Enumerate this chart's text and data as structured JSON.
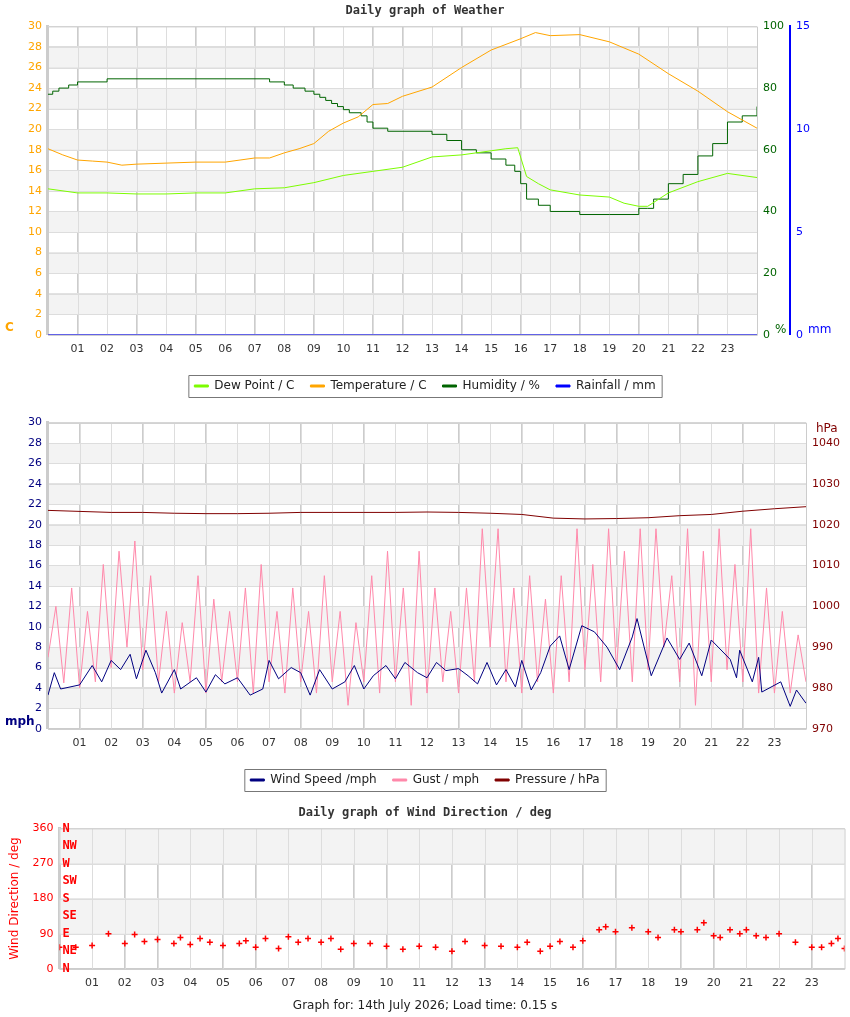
{
  "chart_data": [
    {
      "type": "line",
      "title": "Daily graph of Weather",
      "xlim": [
        0,
        24
      ],
      "xticks": [
        {
          "value": 1,
          "label": "01"
        },
        {
          "value": 2,
          "label": "02"
        },
        {
          "value": 3,
          "label": "03"
        },
        {
          "value": 4,
          "label": "04"
        },
        {
          "value": 5,
          "label": "05"
        },
        {
          "value": 6,
          "label": "06"
        },
        {
          "value": 7,
          "label": "07"
        },
        {
          "value": 8,
          "label": "08"
        },
        {
          "value": 9,
          "label": "09"
        },
        {
          "value": 10,
          "label": "10"
        },
        {
          "value": 11,
          "label": "11"
        },
        {
          "value": 12,
          "label": "12"
        },
        {
          "value": 13,
          "label": "13"
        },
        {
          "value": 14,
          "label": "14"
        },
        {
          "value": 15,
          "label": "15"
        },
        {
          "value": 16,
          "label": "16"
        },
        {
          "value": 17,
          "label": "17"
        },
        {
          "value": 18,
          "label": "18"
        },
        {
          "value": 19,
          "label": "19"
        },
        {
          "value": 20,
          "label": "20"
        },
        {
          "value": 21,
          "label": "21"
        },
        {
          "value": 22,
          "label": "22"
        },
        {
          "value": 23,
          "label": "23"
        }
      ],
      "ylim": [
        0,
        30
      ],
      "yticks": [
        0,
        2,
        4,
        6,
        8,
        10,
        12,
        14,
        16,
        18,
        20,
        22,
        24,
        26,
        28,
        30
      ],
      "ylabel": "C",
      "y2lim": [
        0,
        100
      ],
      "y2ticks": [
        0,
        20,
        40,
        60,
        80,
        100
      ],
      "y2label": "%",
      "y3lim": [
        0,
        15
      ],
      "y3ticks": [
        0,
        5,
        10,
        15
      ],
      "y3label": "mm",
      "grid": true,
      "legend": "bottom",
      "series": [
        {
          "name": "Dew Point / C",
          "color": "#7cfc00",
          "x": [
            0,
            1,
            2,
            3,
            4,
            5,
            6,
            7,
            8,
            9,
            10,
            11,
            12,
            13,
            14,
            15,
            15.5,
            15.9,
            16.2,
            16.6,
            17,
            18,
            19,
            19.5,
            20,
            20.3,
            21,
            22,
            23,
            24
          ],
          "values": [
            14.2,
            13.8,
            13.8,
            13.7,
            13.7,
            13.8,
            13.8,
            14.2,
            14.3,
            14.8,
            15.5,
            15.9,
            16.3,
            17.3,
            17.5,
            17.9,
            18.1,
            18.2,
            15.4,
            14.7,
            14.1,
            13.6,
            13.4,
            12.8,
            12.5,
            12.5,
            13.8,
            14.9,
            15.7,
            15.3
          ]
        },
        {
          "name": "Temperature / C",
          "color": "#ffa500",
          "x": [
            0,
            0.5,
            1,
            1.5,
            2,
            2.5,
            3,
            4,
            5,
            6,
            6.5,
            7,
            7.5,
            8,
            8.5,
            9,
            9.5,
            10,
            10.5,
            11,
            11.5,
            12,
            13,
            14,
            15,
            16,
            16.5,
            17,
            18,
            19,
            20,
            21,
            22,
            23,
            24
          ],
          "values": [
            18.1,
            17.5,
            17.0,
            16.9,
            16.8,
            16.5,
            16.6,
            16.7,
            16.8,
            16.8,
            17.0,
            17.2,
            17.2,
            17.7,
            18.1,
            18.6,
            19.8,
            20.6,
            21.2,
            22.4,
            22.5,
            23.2,
            24.1,
            26.0,
            27.7,
            28.8,
            29.4,
            29.1,
            29.2,
            28.5,
            27.3,
            25.4,
            23.7,
            21.7,
            20.1
          ]
        },
        {
          "name": "Humidity / %",
          "color": "#006400",
          "type": "step",
          "axis": "y2",
          "x": [
            0,
            0.16,
            0.37,
            0.7,
            1.0,
            2.0,
            7.5,
            8.0,
            8.3,
            8.7,
            9.0,
            9.2,
            9.4,
            9.6,
            9.8,
            10.0,
            10.2,
            10.6,
            10.8,
            11.0,
            11.5,
            13.0,
            13.5,
            14.0,
            14.5,
            15.0,
            15.5,
            15.8,
            16.0,
            16.2,
            16.6,
            17.0,
            18.0,
            19.0,
            20.0,
            20.3,
            20.5,
            21.0,
            21.5,
            22.0,
            22.5,
            23.0,
            23.5,
            24
          ],
          "values": [
            78,
            79,
            80,
            81,
            82,
            83,
            82,
            81,
            80,
            79,
            78,
            77,
            76,
            75,
            74,
            73,
            72,
            71,
            69,
            67,
            66,
            65,
            63,
            60,
            59,
            57,
            55,
            53,
            49,
            44,
            42,
            40,
            39,
            39,
            41,
            41,
            44,
            49,
            52,
            58,
            62,
            69,
            71,
            74
          ]
        },
        {
          "name": "Rainfall / mm",
          "color": "#0000ff",
          "axis": "y3",
          "x": [
            0,
            24
          ],
          "values": [
            0,
            0
          ]
        }
      ]
    },
    {
      "type": "line",
      "xlim": [
        0,
        24
      ],
      "xticks": [
        {
          "value": 1,
          "label": "01"
        },
        {
          "value": 2,
          "label": "02"
        },
        {
          "value": 3,
          "label": "03"
        },
        {
          "value": 4,
          "label": "04"
        },
        {
          "value": 5,
          "label": "05"
        },
        {
          "value": 6,
          "label": "06"
        },
        {
          "value": 7,
          "label": "07"
        },
        {
          "value": 8,
          "label": "08"
        },
        {
          "value": 9,
          "label": "09"
        },
        {
          "value": 10,
          "label": "10"
        },
        {
          "value": 11,
          "label": "11"
        },
        {
          "value": 12,
          "label": "12"
        },
        {
          "value": 13,
          "label": "13"
        },
        {
          "value": 14,
          "label": "14"
        },
        {
          "value": 15,
          "label": "15"
        },
        {
          "value": 16,
          "label": "16"
        },
        {
          "value": 17,
          "label": "17"
        },
        {
          "value": 18,
          "label": "18"
        },
        {
          "value": 19,
          "label": "19"
        },
        {
          "value": 20,
          "label": "20"
        },
        {
          "value": 21,
          "label": "21"
        },
        {
          "value": 22,
          "label": "22"
        },
        {
          "value": 23,
          "label": "23"
        }
      ],
      "ylim": [
        0,
        30
      ],
      "yticks": [
        0,
        2,
        4,
        6,
        8,
        10,
        12,
        14,
        16,
        18,
        20,
        22,
        24,
        26,
        28,
        30
      ],
      "ylabel": "mph",
      "y2lim": [
        970,
        1045
      ],
      "y2ticks": [
        970,
        980,
        990,
        1000,
        1010,
        1020,
        1030,
        1040
      ],
      "y2label": "hPa",
      "grid": true,
      "legend": "bottom",
      "series": [
        {
          "name": "Wind Speed /mph",
          "color": "#000080",
          "x": [
            0,
            0.2,
            0.4,
            1,
            1.4,
            1.7,
            2.0,
            2.3,
            2.6,
            2.8,
            3.1,
            3.4,
            3.6,
            4,
            4.2,
            4.7,
            5.0,
            5.3,
            5.6,
            6,
            6.4,
            6.8,
            7.0,
            7.3,
            7.7,
            8.0,
            8.3,
            8.6,
            9.0,
            9.4,
            9.7,
            10.0,
            10.3,
            10.7,
            11.0,
            11.3,
            11.7,
            12.0,
            12.3,
            12.6,
            13.0,
            13.3,
            13.6,
            13.9,
            14.2,
            14.5,
            14.8,
            15.0,
            15.3,
            15.6,
            15.9,
            16.2,
            16.5,
            16.9,
            17.3,
            17.7,
            18.1,
            18.5,
            18.65,
            19.1,
            19.6,
            20.0,
            20.3,
            20.7,
            21.0,
            21.6,
            21.8,
            21.9,
            22.3,
            22.5,
            22.6,
            23.2,
            23.5,
            23.7,
            24
          ],
          "values": [
            3.3,
            5.5,
            3.9,
            4.3,
            6.2,
            4.6,
            6.7,
            5.8,
            7.3,
            4.9,
            7.7,
            5.5,
            3.5,
            5.8,
            3.9,
            5.0,
            3.6,
            5.3,
            4.4,
            5.0,
            3.3,
            3.9,
            6.7,
            4.9,
            6.0,
            5.5,
            3.3,
            5.8,
            3.9,
            4.6,
            6.2,
            3.9,
            5.2,
            6.2,
            4.9,
            6.5,
            5.5,
            5.0,
            6.5,
            5.7,
            5.9,
            5.2,
            4.4,
            6.5,
            4.3,
            5.8,
            4.1,
            6.7,
            3.8,
            5.5,
            8.1,
            9.1,
            5.8,
            10.1,
            9.5,
            8.0,
            5.8,
            9.0,
            10.8,
            5.2,
            8.9,
            6.8,
            8.4,
            5.2,
            8.7,
            6.8,
            5.0,
            7.7,
            4.6,
            7.0,
            3.6,
            4.6,
            2.2,
            3.8,
            2.5
          ]
        },
        {
          "name": "Gust / mph",
          "color": "#ff88aa",
          "x": [
            0,
            0.25,
            0.5,
            0.75,
            1,
            1.25,
            1.5,
            1.75,
            2,
            2.25,
            2.5,
            2.75,
            3,
            3.25,
            3.5,
            3.75,
            4,
            4.25,
            4.5,
            4.75,
            5,
            5.25,
            5.5,
            5.75,
            6,
            6.25,
            6.5,
            6.75,
            7,
            7.25,
            7.5,
            7.75,
            8,
            8.25,
            8.5,
            8.75,
            9,
            9.25,
            9.5,
            9.75,
            10,
            10.25,
            10.5,
            10.75,
            11,
            11.25,
            11.5,
            11.75,
            12,
            12.25,
            12.5,
            12.75,
            13,
            13.25,
            13.5,
            13.75,
            14,
            14.25,
            14.5,
            14.75,
            15,
            15.25,
            15.5,
            15.75,
            16,
            16.25,
            16.5,
            16.75,
            17,
            17.25,
            17.5,
            17.75,
            18,
            18.25,
            18.5,
            18.75,
            19,
            19.25,
            19.5,
            19.75,
            20,
            20.25,
            20.5,
            20.75,
            21,
            21.25,
            21.5,
            21.75,
            22,
            22.25,
            22.5,
            22.75,
            23,
            23.25,
            23.5,
            23.75,
            24
          ],
          "values": [
            7,
            12,
            4.5,
            13.8,
            4,
            11.5,
            4.6,
            16.1,
            6,
            17.4,
            8,
            18.4,
            5.8,
            15,
            4.6,
            11.5,
            3.5,
            10.4,
            4.6,
            15,
            3.5,
            12.7,
            4.6,
            11.5,
            4.6,
            13.8,
            3.5,
            16.1,
            4.6,
            11.5,
            3.5,
            13.8,
            4.6,
            11.5,
            3.5,
            15,
            4.6,
            11.5,
            2.3,
            10.4,
            4.6,
            15,
            3.5,
            17.4,
            4.6,
            13.8,
            2.3,
            17.4,
            3.5,
            13.8,
            4.6,
            11.5,
            3.5,
            13.8,
            4.6,
            19.6,
            8,
            19.6,
            4.6,
            13.8,
            3.5,
            15,
            4.6,
            12.7,
            3.5,
            15,
            4.6,
            19.6,
            5.8,
            16.1,
            4.6,
            19.6,
            5.8,
            17.4,
            4.6,
            19.6,
            5.8,
            19.6,
            8,
            15,
            4.6,
            19.6,
            2.3,
            17.4,
            4.6,
            19.6,
            5.8,
            16.1,
            4.6,
            19.6,
            3.5,
            13.8,
            3.5,
            11.5,
            3.5,
            9.2,
            4.6
          ]
        },
        {
          "name": "Pressure / hPa",
          "color": "#800000",
          "axis": "y2",
          "x": [
            0,
            2,
            3,
            4,
            5,
            6,
            7,
            8,
            9,
            10,
            11,
            12,
            13,
            14,
            15,
            16,
            17,
            18,
            19,
            20,
            21,
            22,
            23,
            24
          ],
          "values": [
            1023.5,
            1023.0,
            1023.0,
            1022.8,
            1022.7,
            1022.7,
            1022.8,
            1023.0,
            1023.0,
            1023.0,
            1023.0,
            1023.1,
            1023.0,
            1022.8,
            1022.5,
            1021.6,
            1021.4,
            1021.5,
            1021.7,
            1022.2,
            1022.5,
            1023.3,
            1023.9,
            1024.4
          ]
        }
      ]
    },
    {
      "type": "scatter",
      "title": "Daily graph of Wind Direction / deg",
      "xlim": [
        0,
        24
      ],
      "xticks": [
        {
          "value": 1,
          "label": "01"
        },
        {
          "value": 2,
          "label": "02"
        },
        {
          "value": 3,
          "label": "03"
        },
        {
          "value": 4,
          "label": "04"
        },
        {
          "value": 5,
          "label": "05"
        },
        {
          "value": 6,
          "label": "06"
        },
        {
          "value": 7,
          "label": "07"
        },
        {
          "value": 8,
          "label": "08"
        },
        {
          "value": 9,
          "label": "09"
        },
        {
          "value": 10,
          "label": "10"
        },
        {
          "value": 11,
          "label": "11"
        },
        {
          "value": 12,
          "label": "12"
        },
        {
          "value": 13,
          "label": "13"
        },
        {
          "value": 14,
          "label": "14"
        },
        {
          "value": 15,
          "label": "15"
        },
        {
          "value": 16,
          "label": "16"
        },
        {
          "value": 17,
          "label": "17"
        },
        {
          "value": 18,
          "label": "18"
        },
        {
          "value": 19,
          "label": "19"
        },
        {
          "value": 20,
          "label": "20"
        },
        {
          "value": 21,
          "label": "21"
        },
        {
          "value": 22,
          "label": "22"
        },
        {
          "value": 23,
          "label": "23"
        }
      ],
      "ylim": [
        0,
        360
      ],
      "yticks": [
        0,
        90,
        180,
        270,
        360
      ],
      "ylabel": "Wind Direction / deg",
      "grid": true,
      "marker": "cross",
      "annotations": [
        "N",
        "NE",
        "E",
        "SE",
        "S",
        "SW",
        "W",
        "NW",
        "N",
        "Graph for: 14th July 2026; Load time: 0.15 s"
      ],
      "series": [
        {
          "color": "#ff0000",
          "x": [
            0,
            0.5,
            1,
            1.5,
            2,
            2.3,
            2.6,
            3,
            3.5,
            3.7,
            4,
            4.3,
            4.6,
            5,
            5.5,
            5.7,
            6,
            6.3,
            6.7,
            7,
            7.3,
            7.6,
            8,
            8.3,
            8.6,
            9,
            9.5,
            10,
            10.5,
            11,
            11.5,
            12,
            12.4,
            13,
            13.5,
            14,
            14.3,
            14.7,
            15,
            15.3,
            15.7,
            16,
            16.5,
            16.7,
            17,
            17.5,
            18,
            18.3,
            18.8,
            19,
            19.5,
            19.7,
            20,
            20.2,
            20.5,
            20.8,
            21,
            21.3,
            21.6,
            22,
            22.5,
            23,
            23.3,
            23.6,
            23.8,
            24
          ],
          "values": [
            55,
            55,
            60,
            90,
            65,
            88,
            70,
            75,
            65,
            80,
            62,
            78,
            68,
            60,
            65,
            72,
            55,
            78,
            52,
            82,
            68,
            78,
            68,
            78,
            50,
            65,
            65,
            58,
            50,
            58,
            55,
            45,
            70,
            60,
            58,
            55,
            68,
            45,
            58,
            70,
            55,
            72,
            100,
            108,
            95,
            105,
            95,
            80,
            100,
            95,
            100,
            118,
            85,
            80,
            100,
            90,
            100,
            85,
            80,
            90,
            68,
            55,
            55,
            65,
            78,
            52
          ]
        }
      ]
    }
  ]
}
